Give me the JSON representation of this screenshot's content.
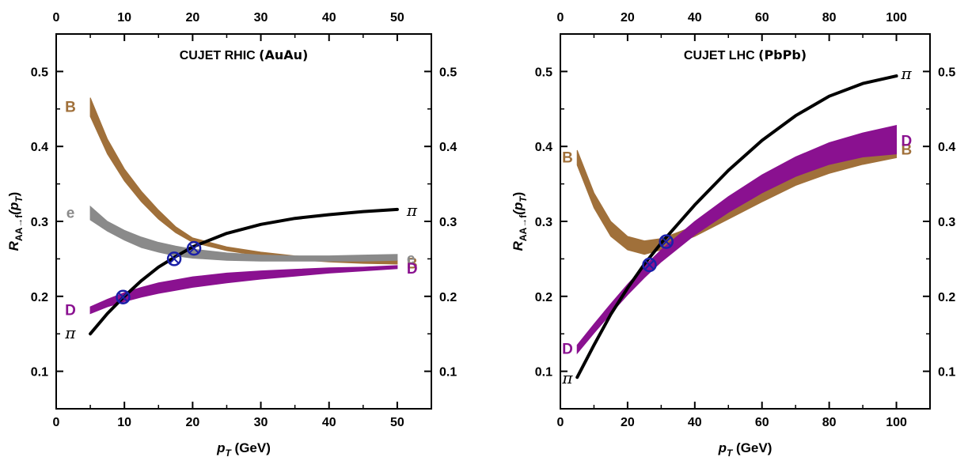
{
  "colors": {
    "B": "#a0703a",
    "e": "#8a8a8a",
    "D": "#8a1190",
    "pi": "#000000",
    "crossing": "#1a20a8"
  },
  "chart_data": [
    {
      "type": "line",
      "title_main": "CUJET RHIC",
      "title_paren": "(AuAu)",
      "xlabel_main": "p",
      "xlabel_sub": "T",
      "xlabel_unit": "(GeV)",
      "ylabel_main": "R",
      "ylabel_sub": "AA→f",
      "ylabel_tail": "(p",
      "ylabel_tail_sub": "T",
      "ylabel_close": ")",
      "xlim": [
        0,
        55
      ],
      "ylim": [
        0.05,
        0.55
      ],
      "xticks": [
        "0",
        "10",
        "20",
        "30",
        "40",
        "50"
      ],
      "xtick_values": [
        0,
        10,
        20,
        30,
        40,
        50
      ],
      "yticks": [
        "0.1",
        "0.2",
        "0.3",
        "0.4",
        "0.5"
      ],
      "ytick_values": [
        0.1,
        0.2,
        0.3,
        0.4,
        0.5
      ],
      "series": [
        {
          "key": "B",
          "type": "band",
          "x": [
            5,
            7.5,
            10,
            12.5,
            15,
            17.5,
            20,
            25,
            30,
            35,
            40,
            45,
            50
          ],
          "upper": [
            0.465,
            0.41,
            0.37,
            0.34,
            0.315,
            0.293,
            0.278,
            0.266,
            0.259,
            0.254,
            0.251,
            0.249,
            0.248
          ],
          "lower": [
            0.44,
            0.39,
            0.354,
            0.326,
            0.303,
            0.285,
            0.272,
            0.261,
            0.254,
            0.249,
            0.246,
            0.244,
            0.243
          ],
          "left_label": "B",
          "right_label": "B"
        },
        {
          "key": "e",
          "type": "band",
          "x": [
            5,
            7.5,
            10,
            12.5,
            15,
            17.5,
            20,
            25,
            30,
            35,
            40,
            45,
            50
          ],
          "upper": [
            0.32,
            0.3,
            0.288,
            0.279,
            0.272,
            0.267,
            0.263,
            0.258,
            0.255,
            0.254,
            0.254,
            0.255,
            0.256
          ],
          "lower": [
            0.302,
            0.287,
            0.275,
            0.265,
            0.259,
            0.254,
            0.251,
            0.248,
            0.247,
            0.247,
            0.247,
            0.247,
            0.248
          ],
          "left_label": "e",
          "right_label": "e"
        },
        {
          "key": "D",
          "type": "band",
          "x": [
            5,
            7.5,
            10,
            12.5,
            15,
            17.5,
            20,
            25,
            30,
            35,
            40,
            45,
            50
          ],
          "upper": [
            0.186,
            0.196,
            0.205,
            0.212,
            0.218,
            0.222,
            0.226,
            0.231,
            0.234,
            0.236,
            0.238,
            0.239,
            0.241
          ],
          "lower": [
            0.177,
            0.186,
            0.193,
            0.199,
            0.204,
            0.208,
            0.212,
            0.218,
            0.223,
            0.227,
            0.231,
            0.234,
            0.237
          ],
          "left_label": "D",
          "right_label": "D"
        },
        {
          "key": "pi",
          "type": "line",
          "x": [
            5,
            7.5,
            10,
            12.5,
            15,
            17.5,
            20,
            25,
            30,
            35,
            40,
            45,
            50
          ],
          "y": [
            0.15,
            0.177,
            0.2,
            0.221,
            0.239,
            0.253,
            0.266,
            0.284,
            0.296,
            0.304,
            0.309,
            0.313,
            0.316
          ],
          "left_label": "π",
          "right_label": "π"
        }
      ],
      "crossings": [
        {
          "x": 9.8,
          "y": 0.199
        },
        {
          "x": 17.3,
          "y": 0.25
        },
        {
          "x": 20.2,
          "y": 0.264
        }
      ]
    },
    {
      "type": "line",
      "title_main": "CUJET LHC",
      "title_paren": "(PbPb)",
      "xlabel_main": "p",
      "xlabel_sub": "T",
      "xlabel_unit": "(GeV)",
      "ylabel_main": "R",
      "ylabel_sub": "AA→f",
      "ylabel_tail": "(p",
      "ylabel_tail_sub": "T",
      "ylabel_close": ")",
      "xlim": [
        0,
        110
      ],
      "ylim": [
        0.05,
        0.55
      ],
      "xticks": [
        "0",
        "20",
        "40",
        "60",
        "80",
        "100"
      ],
      "xtick_values": [
        0,
        20,
        40,
        60,
        80,
        100
      ],
      "yticks": [
        "0.1",
        "0.2",
        "0.3",
        "0.4",
        "0.5"
      ],
      "ytick_values": [
        0.1,
        0.2,
        0.3,
        0.4,
        0.5
      ],
      "series": [
        {
          "key": "B",
          "type": "band",
          "x": [
            5,
            10,
            15,
            20,
            25,
            30,
            40,
            50,
            60,
            70,
            80,
            90,
            100
          ],
          "upper": [
            0.395,
            0.338,
            0.3,
            0.28,
            0.274,
            0.277,
            0.294,
            0.318,
            0.342,
            0.364,
            0.383,
            0.398,
            0.41
          ],
          "lower": [
            0.375,
            0.318,
            0.28,
            0.262,
            0.256,
            0.262,
            0.28,
            0.303,
            0.326,
            0.348,
            0.364,
            0.376,
            0.385
          ],
          "left_label": "B",
          "right_label": "B"
        },
        {
          "key": "D",
          "type": "band",
          "x": [
            5,
            10,
            15,
            20,
            25,
            30,
            40,
            50,
            60,
            70,
            80,
            90,
            100
          ],
          "upper": [
            0.135,
            0.163,
            0.19,
            0.216,
            0.24,
            0.262,
            0.3,
            0.333,
            0.362,
            0.386,
            0.405,
            0.418,
            0.428
          ],
          "lower": [
            0.124,
            0.151,
            0.177,
            0.202,
            0.225,
            0.246,
            0.282,
            0.312,
            0.338,
            0.36,
            0.376,
            0.386,
            0.39
          ],
          "left_label": "D",
          "right_label": "D"
        },
        {
          "key": "pi",
          "type": "line",
          "x": [
            5,
            10,
            15,
            20,
            25,
            30,
            40,
            50,
            60,
            70,
            80,
            90,
            100
          ],
          "y": [
            0.092,
            0.135,
            0.176,
            0.211,
            0.243,
            0.271,
            0.322,
            0.368,
            0.408,
            0.441,
            0.467,
            0.484,
            0.494
          ],
          "left_label": "π",
          "right_label": "π"
        }
      ],
      "crossings": [
        {
          "x": 26.5,
          "y": 0.242
        },
        {
          "x": 31.5,
          "y": 0.273
        }
      ]
    }
  ]
}
